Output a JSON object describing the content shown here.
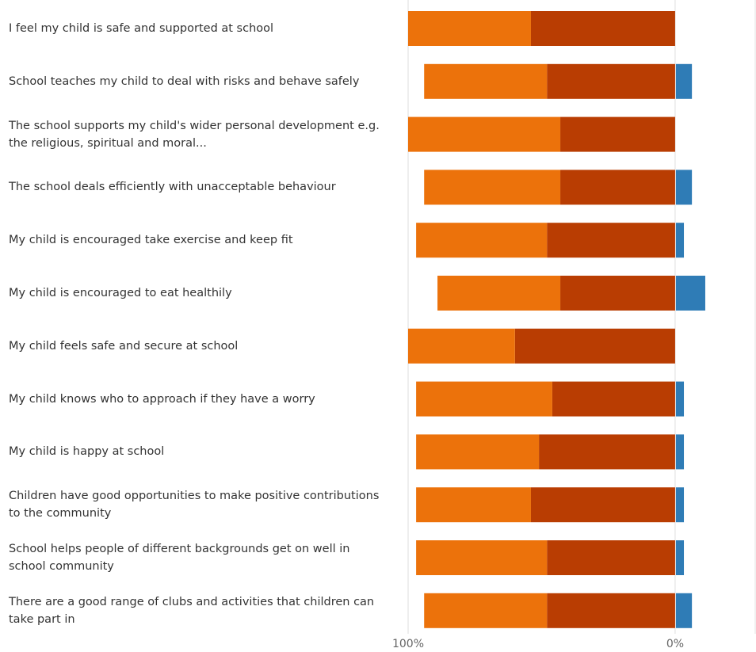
{
  "chart_data": {
    "type": "diverging-bar",
    "categories": [
      "I feel my child is safe and supported at school",
      "School teaches my child to deal with risks and behave safely",
      "The school supports my child's wider personal development e.g. the religious, spiritual and moral...",
      "The school deals efficiently with unacceptable behaviour",
      "My child is encouraged take exercise and keep fit",
      "My child is encouraged to eat healthily",
      "My child feels safe and secure at school",
      "My child knows who to approach if they have a worry",
      "My child is happy at school",
      "Children have good opportunities to make positive contributions to the community",
      "School helps people of different backgrounds get on well in school community",
      "There are a good range of clubs and activities that children can take part in"
    ],
    "series": [
      {
        "color": "#b93d02",
        "values": [
          54,
          48,
          43,
          43,
          48,
          43,
          60,
          46,
          51,
          54,
          48,
          48
        ]
      },
      {
        "color": "#ec720b",
        "values": [
          46,
          46,
          57,
          51,
          49,
          46,
          40,
          51,
          46,
          43,
          49,
          46
        ]
      },
      {
        "color": "#2f7cb6",
        "values": [
          0,
          6,
          0,
          6,
          3,
          11,
          0,
          3,
          3,
          3,
          3,
          6
        ]
      }
    ],
    "xlim": [
      100,
      -30
    ],
    "xticks": [
      {
        "value": 100,
        "label": "100%"
      },
      {
        "value": 0,
        "label": "0%"
      }
    ],
    "grid": true
  }
}
